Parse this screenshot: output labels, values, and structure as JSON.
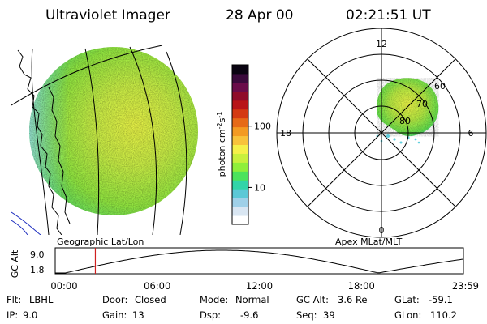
{
  "header": {
    "title": "Ultraviolet Imager",
    "date": "28 Apr 00",
    "time": "02:21:51 UT"
  },
  "left_panel": {
    "caption": "Geographic Lat/Lon"
  },
  "colorbar": {
    "unit_label": "photon cm-2s-1",
    "tick_labels": [
      "100",
      "10"
    ],
    "tick_values": [
      100,
      10
    ],
    "range": [
      2.5,
      1000
    ],
    "scale": "log",
    "colors": [
      "#ffffff",
      "#d9e6f2",
      "#9fd0e8",
      "#5cc8d6",
      "#31d4a8",
      "#4be35c",
      "#8fef3a",
      "#c8f03c",
      "#f5f048",
      "#f8c23a",
      "#f39a22",
      "#e66a17",
      "#d43a12",
      "#b81418",
      "#8f0c2a",
      "#6a0c4a",
      "#3a0a3c",
      "#0a0412"
    ]
  },
  "polar_plot": {
    "caption": "Apex MLat/MLT",
    "mlt_labels": [
      "12",
      "18",
      "6",
      "0"
    ],
    "mlat_labels": [
      "60",
      "70",
      "80"
    ]
  },
  "timeline": {
    "ylabel": "GC Alt",
    "y_ticks": [
      "9.0",
      "1.8"
    ],
    "x_ticks": [
      "00:00",
      "06:00",
      "12:00",
      "18:00",
      "23:59"
    ],
    "marker_time_hours": 2.36,
    "marker_color": "#d02020",
    "orbit_curve_color": "#000000"
  },
  "info": {
    "filter": {
      "label": "Flt:",
      "value": "LBHL"
    },
    "ip": {
      "label": "IP:",
      "value": "9.0"
    },
    "door": {
      "label": "Door:",
      "value": "Closed"
    },
    "gain": {
      "label": "Gain:",
      "value": "13"
    },
    "mode": {
      "label": "Mode:",
      "value": "Normal"
    },
    "dsp": {
      "label": "Dsp:",
      "value": "-9.6"
    },
    "gc_alt": {
      "label": "GC Alt:",
      "value": "3.6 Re"
    },
    "seq": {
      "label": "Seq:",
      "value": "39"
    },
    "glat": {
      "label": "GLat:",
      "value": "-59.1"
    },
    "glon": {
      "label": "GLon:",
      "value": "110.2"
    }
  }
}
